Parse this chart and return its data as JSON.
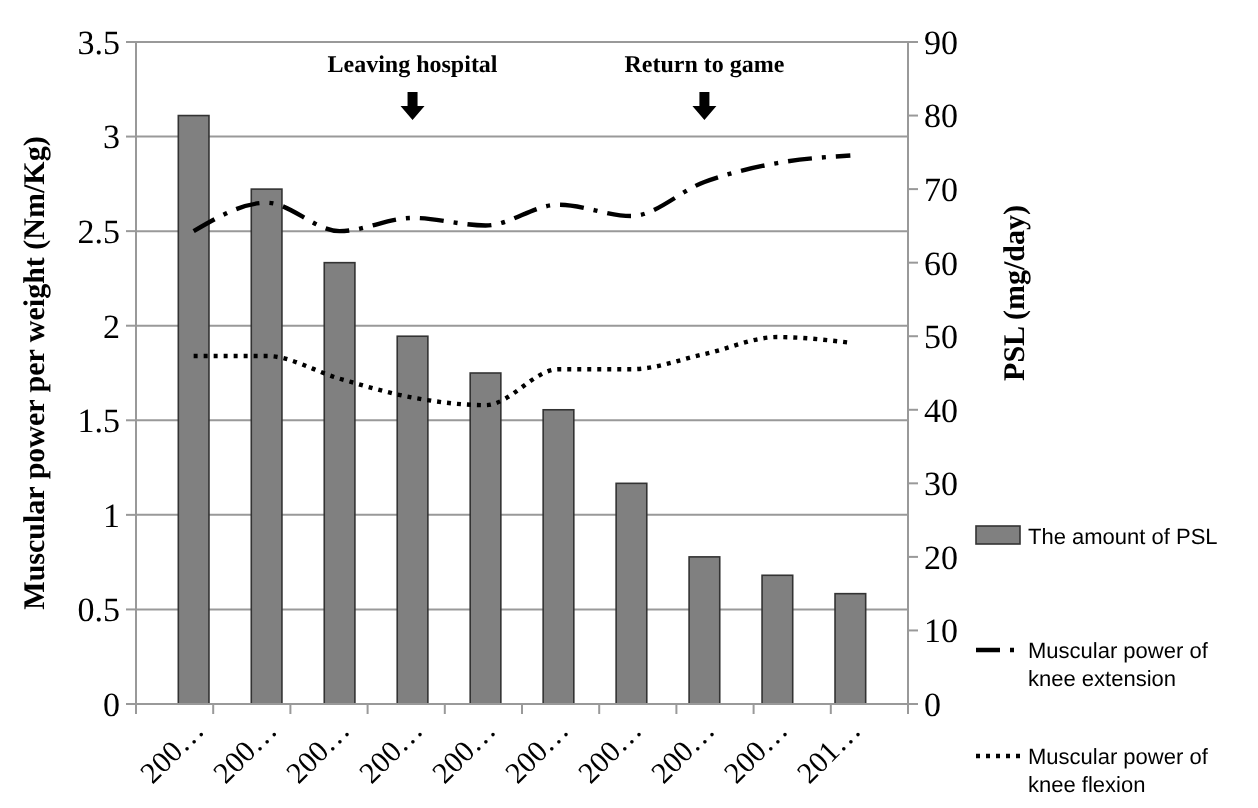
{
  "chart_data": {
    "type": "bar",
    "ylabel": "Muscular power per weight (Nm/Kg)",
    "y2label": "PSL (mg/day)",
    "categories": [
      "200…",
      "200…",
      "200…",
      "200…",
      "200…",
      "200…",
      "200…",
      "200…",
      "200…",
      "201…"
    ],
    "series": [
      {
        "name": "The amount of PSL",
        "axis": "y2",
        "color": "#808080",
        "values": [
          80,
          70,
          60,
          50,
          45,
          40,
          30,
          20,
          17.5,
          15
        ]
      },
      {
        "name": "Muscular power of knee extension",
        "type": "line",
        "line_style": "dashdot",
        "color": "#000000",
        "values": [
          2.5,
          2.65,
          2.5,
          2.57,
          2.53,
          2.64,
          2.58,
          2.76,
          2.86,
          2.9
        ]
      },
      {
        "name": "Muscular power of knee flexion",
        "type": "line",
        "line_style": "dotted",
        "color": "#000000",
        "values": [
          1.84,
          1.84,
          1.72,
          1.62,
          1.58,
          1.77,
          1.77,
          1.85,
          1.94,
          1.91
        ]
      }
    ],
    "ylim": [
      0,
      3.5
    ],
    "yticks": [
      0,
      0.5,
      1,
      1.5,
      2,
      2.5,
      3,
      3.5
    ],
    "y2lim": [
      0,
      90
    ],
    "y2ticks": [
      0,
      10,
      20,
      30,
      40,
      50,
      60,
      70,
      80,
      90
    ],
    "grid": "y",
    "legend": "right",
    "annotations": [
      "Leaving hospital",
      "Return to game"
    ]
  }
}
